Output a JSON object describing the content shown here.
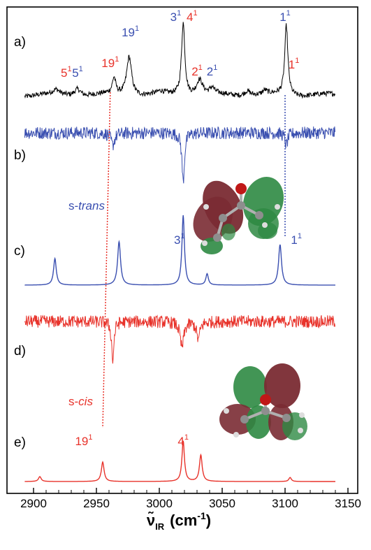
{
  "chart_data": {
    "type": "line",
    "title": "",
    "xlabel": "ν̃IR (cm−1)",
    "xlabel_parts": {
      "symbol": "ν̃",
      "subscript": "IR",
      "units": "(cm",
      "units_exp": "-1",
      "units_close": ")"
    },
    "xlim": [
      2890,
      3150
    ],
    "x_ticks": [
      2900,
      2950,
      3000,
      3050,
      3100,
      3150
    ],
    "x_tick_labels": [
      "2900",
      "2950",
      "3000",
      "3050",
      "3100",
      "3150"
    ],
    "grid": false,
    "legend": "none",
    "colors": {
      "experiment": "#000000",
      "trans": "#3a4fb0",
      "cis": "#e8322a",
      "axis": "#000000"
    },
    "panels": [
      {
        "id": "a",
        "label": "a)",
        "color": "#000000",
        "kind": "experimental",
        "peaks": [
          {
            "x": 3019,
            "h": 1.0,
            "w": 1.6
          },
          {
            "x": 3101,
            "h": 0.96,
            "w": 1.5
          },
          {
            "x": 2976,
            "h": 0.54,
            "w": 2.4
          },
          {
            "x": 2964,
            "h": 0.22,
            "w": 1.6
          },
          {
            "x": 3032,
            "h": 0.21,
            "w": 3.0
          },
          {
            "x": 3042,
            "h": 0.08,
            "w": 2.0
          },
          {
            "x": 2935,
            "h": 0.1,
            "w": 3.0
          },
          {
            "x": 2918,
            "h": 0.06,
            "w": 3.0
          },
          {
            "x": 3070,
            "h": 0.07,
            "w": 3.0
          },
          {
            "x": 3084,
            "h": 0.05,
            "w": 2.0
          },
          {
            "x": 3001,
            "h": 0.03,
            "w": 3.0
          }
        ],
        "noise": 0.035
      },
      {
        "id": "b",
        "label": "b)",
        "color": "#3a4fb0",
        "kind": "difference",
        "peaks": [
          {
            "x": 3019,
            "h": -1.0,
            "w": 1.2
          },
          {
            "x": 3101,
            "h": -0.25,
            "w": 1.4
          },
          {
            "x": 2963,
            "h": -0.25,
            "w": 1.8
          }
        ],
        "noise": 0.13
      },
      {
        "id": "c",
        "label": "c)",
        "color": "#3a4fb0",
        "kind": "simulated",
        "species": "s-trans",
        "peaks": [
          {
            "x": 2917,
            "h": 0.38,
            "w": 1.3
          },
          {
            "x": 2968,
            "h": 0.62,
            "w": 1.4
          },
          {
            "x": 3019,
            "h": 1.0,
            "w": 1.2
          },
          {
            "x": 3038,
            "h": 0.16,
            "w": 1.2
          },
          {
            "x": 3096,
            "h": 0.58,
            "w": 1.4
          }
        ],
        "noise": 0
      },
      {
        "id": "d",
        "label": "d)",
        "color": "#e8322a",
        "kind": "difference",
        "peaks": [
          {
            "x": 2963,
            "h": -1.0,
            "w": 1.1
          },
          {
            "x": 3018,
            "h": -0.65,
            "w": 1.8
          },
          {
            "x": 3031,
            "h": -0.45,
            "w": 1.6
          }
        ],
        "noise": 0.16
      },
      {
        "id": "e",
        "label": "e)",
        "color": "#e8322a",
        "kind": "simulated",
        "species": "s-cis",
        "peaks": [
          {
            "x": 2905,
            "h": 0.12,
            "w": 1.3
          },
          {
            "x": 2955,
            "h": 0.48,
            "w": 1.3
          },
          {
            "x": 3019,
            "h": 1.0,
            "w": 1.2
          },
          {
            "x": 3033,
            "h": 0.65,
            "w": 1.3
          },
          {
            "x": 3104,
            "h": 0.1,
            "w": 1.2
          }
        ],
        "noise": 0
      }
    ],
    "annotations": [
      {
        "text": "5",
        "sup": "1",
        "color": "#e8322a",
        "panel": "a",
        "x": 2926
      },
      {
        "text": "5",
        "sup": "1",
        "color": "#3a4fb0",
        "panel": "a",
        "x": 2935
      },
      {
        "text": "19",
        "sup": "1",
        "color": "#e8322a",
        "panel": "a",
        "x": 2961
      },
      {
        "text": "19",
        "sup": "1",
        "color": "#3a4fb0",
        "panel": "a",
        "x": 2977
      },
      {
        "text": "3",
        "sup": "1",
        "color": "#3a4fb0",
        "panel": "a",
        "x": 3013
      },
      {
        "text": "4",
        "sup": "1",
        "color": "#e8322a",
        "panel": "a",
        "x": 3026
      },
      {
        "text": "2",
        "sup": "1",
        "color": "#e8322a",
        "panel": "a",
        "x": 3030
      },
      {
        "text": "2",
        "sup": "1",
        "color": "#3a4fb0",
        "panel": "a",
        "x": 3042
      },
      {
        "text": "1",
        "sup": "1",
        "color": "#3a4fb0",
        "panel": "a",
        "x": 3100
      },
      {
        "text": "1",
        "sup": "1",
        "color": "#e8322a",
        "panel": "a",
        "x": 3107
      },
      {
        "text": "3",
        "sup": "1",
        "color": "#3a4fb0",
        "panel": "c",
        "x": 3016
      },
      {
        "text": "1",
        "sup": "1",
        "color": "#3a4fb0",
        "panel": "c",
        "x": 3109
      },
      {
        "text": "19",
        "sup": "1",
        "color": "#e8322a",
        "panel": "e",
        "x": 2940
      },
      {
        "text": "4",
        "sup": "1",
        "color": "#e8322a",
        "panel": "e",
        "x": 3019
      }
    ],
    "species_labels": [
      {
        "text_prefix": "s-",
        "text_italic": "trans",
        "color": "#3a4fb0",
        "panel": "c"
      },
      {
        "text_prefix": "s-",
        "text_italic": "cis",
        "color": "#e8322a",
        "panel": "e"
      }
    ],
    "correlation_lines": [
      {
        "color": "#e8322a",
        "x_top": 2961,
        "x_bottom": 2955
      },
      {
        "color": "#3a4fb0",
        "x_top": 3100,
        "x_bottom": 3100
      }
    ]
  }
}
